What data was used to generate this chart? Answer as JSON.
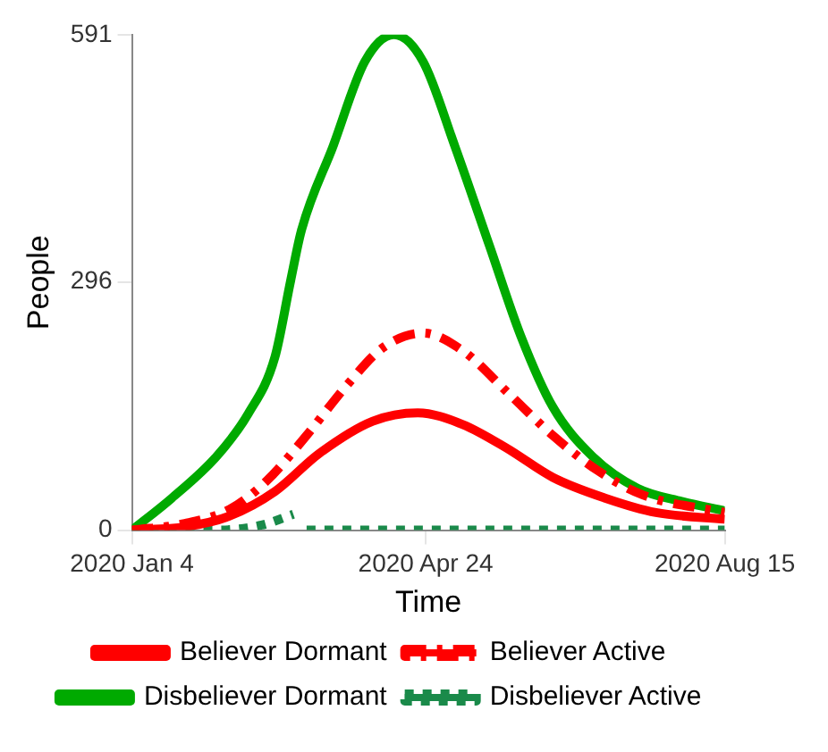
{
  "chart_data": {
    "type": "line",
    "xlabel": "Time",
    "ylabel": "People",
    "xlim": [
      "2020-01-04",
      "2020-08-15"
    ],
    "xticks": [
      {
        "value": "2020-01-04",
        "label": "2020 Jan 4"
      },
      {
        "value": "2020-04-24",
        "label": "2020 Apr 24"
      },
      {
        "value": "2020-08-15",
        "label": "2020 Aug 15"
      }
    ],
    "ylim": [
      0,
      591
    ],
    "yticks": [
      0,
      296,
      591
    ],
    "grid": false,
    "legend": "bottom",
    "series": [
      {
        "name": "Believer Dormant",
        "color": "#ff0000",
        "line_style": "solid",
        "x": [
          "2020-01-04",
          "2020-01-24",
          "2020-02-10",
          "2020-02-27",
          "2020-03-15",
          "2020-04-04",
          "2020-04-21",
          "2020-05-08",
          "2020-05-25",
          "2020-06-11",
          "2020-07-01",
          "2020-07-20",
          "2020-08-15"
        ],
        "values": [
          0,
          4,
          17,
          46,
          92,
          130,
          140,
          126,
          97,
          63,
          38,
          21,
          13
        ]
      },
      {
        "name": "Believer Active",
        "color": "#ff0000",
        "line_style": "dashed",
        "x": [
          "2020-01-04",
          "2020-01-24",
          "2020-02-10",
          "2020-02-24",
          "2020-03-10",
          "2020-03-25",
          "2020-04-08",
          "2020-04-23",
          "2020-05-08",
          "2020-05-25",
          "2020-06-11",
          "2020-06-28",
          "2020-07-15",
          "2020-08-15"
        ],
        "values": [
          0,
          8,
          25,
          59,
          113,
          172,
          218,
          235,
          214,
          164,
          113,
          71,
          42,
          21
        ]
      },
      {
        "name": "Disbeliever Dormant",
        "color": "#00aa00",
        "line_style": "solid",
        "x": [
          "2020-01-04",
          "2020-01-19",
          "2020-02-05",
          "2020-02-17",
          "2020-02-27",
          "2020-03-04",
          "2020-03-08",
          "2020-03-20",
          "2020-04-01",
          "2020-04-12",
          "2020-04-23",
          "2020-05-05",
          "2020-05-18",
          "2020-05-30",
          "2020-06-11",
          "2020-06-26",
          "2020-07-13",
          "2020-07-30",
          "2020-08-15"
        ],
        "values": [
          0,
          38,
          88,
          139,
          206,
          298,
          357,
          458,
          559,
          591,
          559,
          458,
          340,
          231,
          147,
          88,
          50,
          34,
          23
        ]
      },
      {
        "name": "Disbeliever Active",
        "color": "#1a8a4a",
        "line_style": "dotted",
        "x": [
          "2020-01-04",
          "2020-02-05",
          "2020-02-22",
          "2020-03-05",
          "2020-03-07",
          "2020-03-10",
          "2020-03-25",
          "2020-04-08",
          "2020-04-23",
          "2020-05-08",
          "2020-05-25",
          "2020-06-11",
          "2020-06-28",
          "2020-07-15",
          "2020-08-01",
          "2020-08-15"
        ],
        "values": [
          0,
          0,
          6,
          19,
          null,
          0,
          0,
          0,
          0,
          0,
          0,
          0,
          0,
          0,
          0,
          0
        ]
      }
    ]
  }
}
